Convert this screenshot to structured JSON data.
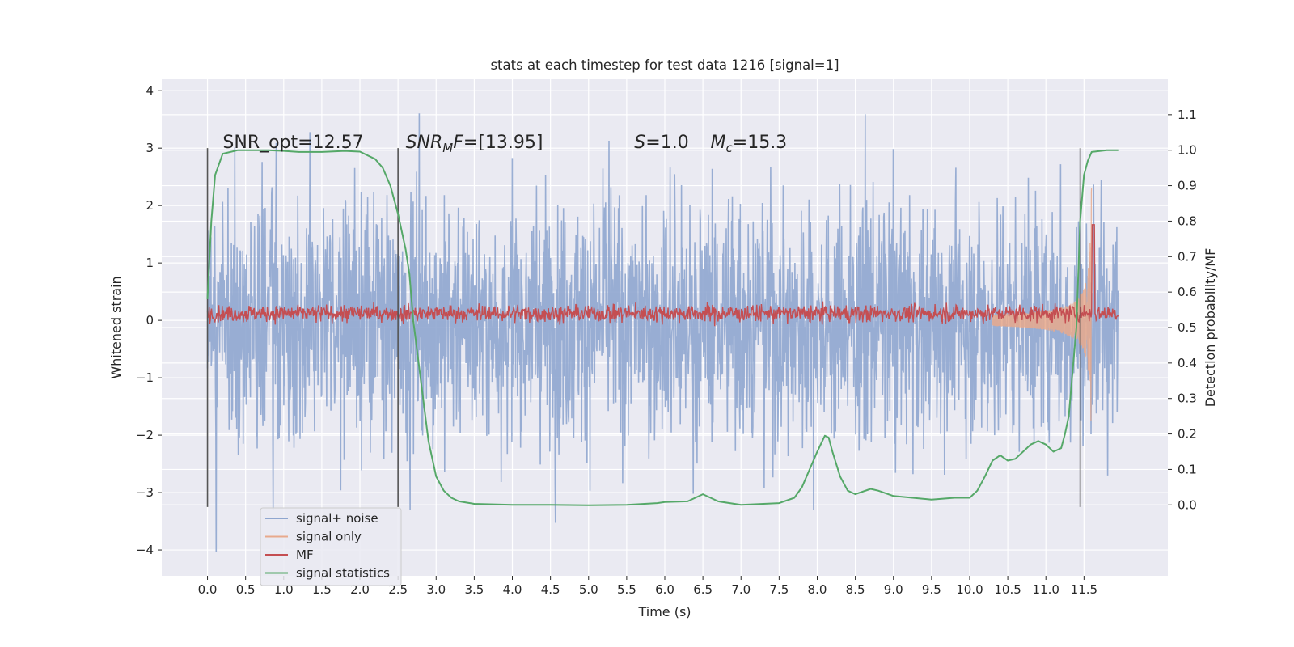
{
  "chart_data": {
    "type": "line",
    "title": "stats at each timestep for test data 1216 [signal=1]",
    "xlabel": "Time (s)",
    "ylabel": "Whitened strain",
    "y2label": "Detection probability/MF",
    "xlim": [
      -0.6,
      12.6
    ],
    "ylim": [
      -4.45,
      4.2
    ],
    "y2lim": [
      -0.2,
      1.2
    ],
    "x_ticks": [
      0.0,
      0.5,
      1.0,
      1.5,
      2.0,
      2.5,
      3.0,
      3.5,
      4.0,
      4.5,
      5.0,
      5.5,
      6.0,
      6.5,
      7.0,
      7.5,
      8.0,
      8.5,
      9.0,
      9.5,
      10.0,
      10.5,
      11.0,
      11.5
    ],
    "x_tick_labels": [
      "0.0",
      "0.5",
      "1.0",
      "1.5",
      "2.0",
      "2.5",
      "3.0",
      "3.5",
      "4.0",
      "4.5",
      "5.0",
      "5.5",
      "6.0",
      "6.5",
      "7.0",
      "7.5",
      "8.0",
      "8.5",
      "9.0",
      "9.5",
      "10.0",
      "10.5",
      "11.0",
      "11.5"
    ],
    "y_ticks": [
      -4,
      -3,
      -2,
      -1,
      0,
      1,
      2,
      3,
      4
    ],
    "y_tick_labels": [
      "−4",
      "−3",
      "−2",
      "−1",
      "0",
      "1",
      "2",
      "3",
      "4"
    ],
    "y2_ticks": [
      0.0,
      0.1,
      0.2,
      0.3,
      0.4,
      0.5,
      0.6,
      0.7,
      0.8,
      0.9,
      1.0,
      1.1
    ],
    "y2_tick_labels": [
      "0.0",
      "0.1",
      "0.2",
      "0.3",
      "0.4",
      "0.5",
      "0.6",
      "0.7",
      "0.8",
      "0.9",
      "1.0",
      "1.1"
    ],
    "grid": true,
    "legend_position": "lower-left",
    "vertical_lines_x": [
      0.0,
      2.5,
      11.45
    ],
    "annotations": [
      {
        "text": "SNR_opt=12.57",
        "x": 0.2,
        "y": 3.0,
        "italic_part": ""
      },
      {
        "text": "SNR_MF=[13.95]",
        "x": 2.6,
        "y": 3.0,
        "italic_part": "SNR_MF"
      },
      {
        "text": "S=1.0",
        "x": 5.6,
        "y": 3.0,
        "italic_part": "S"
      },
      {
        "text": "M_c=15.3",
        "x": 6.6,
        "y": 3.0,
        "italic_part": "M_c"
      }
    ],
    "series": [
      {
        "name": "signal+ noise",
        "color": "#8fa6cf",
        "kind": "noise",
        "x_range": [
          0.0,
          11.95
        ],
        "typical_amplitude": 1.1,
        "max": 3.8,
        "min": -4.1
      },
      {
        "name": "signal only",
        "color": "#e8a98c",
        "kind": "chirp",
        "x_range": [
          10.3,
          11.6
        ],
        "peak_x": 11.6,
        "peak_y": 2.3,
        "trough_y": -2.0
      },
      {
        "name": "MF",
        "color": "#c44e52",
        "kind": "mf",
        "x_range": [
          0.0,
          11.95
        ],
        "axis": "y2",
        "baseline": 0.54,
        "jitter": 0.012,
        "spike_x": 11.62,
        "spike_value": 0.79
      },
      {
        "name": "signal statistics",
        "color": "#55a868",
        "kind": "line",
        "axis": "y2",
        "x": [
          0.0,
          0.05,
          0.1,
          0.2,
          0.4,
          0.8,
          1.0,
          1.2,
          1.5,
          1.8,
          2.0,
          2.2,
          2.3,
          2.4,
          2.5,
          2.6,
          2.65,
          2.7,
          2.8,
          2.9,
          3.0,
          3.1,
          3.2,
          3.3,
          3.5,
          4.0,
          4.5,
          5.0,
          5.5,
          5.9,
          6.0,
          6.3,
          6.5,
          6.7,
          7.0,
          7.5,
          7.7,
          7.8,
          8.0,
          8.1,
          8.15,
          8.2,
          8.3,
          8.4,
          8.5,
          8.7,
          8.8,
          9.0,
          9.5,
          9.8,
          10.0,
          10.1,
          10.2,
          10.3,
          10.4,
          10.5,
          10.6,
          10.8,
          10.9,
          11.0,
          11.1,
          11.2,
          11.25,
          11.3,
          11.4,
          11.45,
          11.5,
          11.55,
          11.6,
          11.8,
          11.95
        ],
        "values": [
          0.58,
          0.8,
          0.93,
          0.99,
          1.0,
          1.0,
          0.998,
          0.995,
          0.995,
          0.998,
          0.996,
          0.975,
          0.95,
          0.9,
          0.82,
          0.72,
          0.65,
          0.52,
          0.35,
          0.18,
          0.08,
          0.04,
          0.02,
          0.01,
          0.003,
          0.0,
          0.0,
          -0.001,
          0.0,
          0.005,
          0.008,
          0.01,
          0.03,
          0.01,
          0.0,
          0.005,
          0.02,
          0.05,
          0.15,
          0.195,
          0.19,
          0.15,
          0.08,
          0.04,
          0.03,
          0.045,
          0.04,
          0.025,
          0.015,
          0.02,
          0.02,
          0.04,
          0.08,
          0.125,
          0.14,
          0.125,
          0.13,
          0.17,
          0.18,
          0.17,
          0.15,
          0.16,
          0.2,
          0.25,
          0.5,
          0.8,
          0.93,
          0.97,
          0.995,
          1.0,
          1.0
        ]
      }
    ]
  }
}
